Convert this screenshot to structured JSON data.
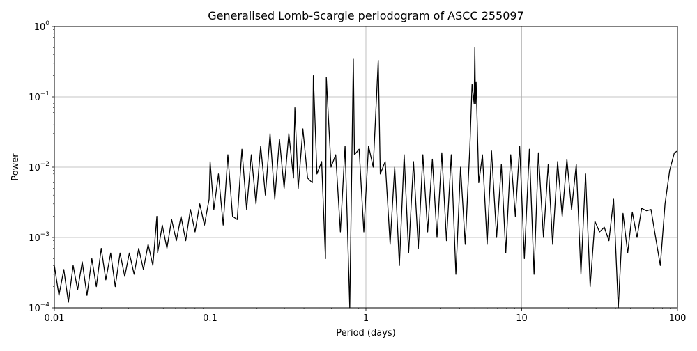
{
  "chart_data": {
    "type": "line",
    "title": "Generalised Lomb-Scargle periodogram of ASCC 255097",
    "xlabel": "Period (days)",
    "ylabel": "Power",
    "xscale": "log",
    "yscale": "log",
    "xlim": [
      0.01,
      100
    ],
    "ylim": [
      0.0001,
      1
    ],
    "grid": true,
    "x_ticks": [
      {
        "value": 0.01,
        "label": "0.01"
      },
      {
        "value": 0.1,
        "label": "0.1"
      },
      {
        "value": 1,
        "label": "1"
      },
      {
        "value": 10,
        "label": "10"
      },
      {
        "value": 100,
        "label": "100"
      }
    ],
    "y_ticks": [
      {
        "value": 0.0001,
        "base": "10",
        "exp": "−4"
      },
      {
        "value": 0.001,
        "base": "10",
        "exp": "−3"
      },
      {
        "value": 0.01,
        "base": "10",
        "exp": "−2"
      },
      {
        "value": 0.1,
        "base": "10",
        "exp": "−1"
      },
      {
        "value": 1,
        "base": "10",
        "exp": "0"
      }
    ],
    "line_color": "#000000",
    "series": [
      {
        "x": [
          0.01,
          0.0107,
          0.0115,
          0.0123,
          0.0132,
          0.0141,
          0.0151,
          0.0162,
          0.0174,
          0.0186,
          0.02,
          0.0214,
          0.023,
          0.0246,
          0.0264,
          0.0283,
          0.0303,
          0.0325,
          0.0348,
          0.0373,
          0.04,
          0.0429,
          0.0455,
          0.046,
          0.0493,
          0.0528,
          0.0566,
          0.0607,
          0.065,
          0.0697,
          0.0747,
          0.08,
          0.0858,
          0.0919,
          0.0985,
          0.1,
          0.1056,
          0.1131,
          0.1213,
          0.13,
          0.1393,
          0.1493,
          0.16,
          0.1715,
          0.1838,
          0.197,
          0.2111,
          0.2263,
          0.2425,
          0.26,
          0.2786,
          0.2986,
          0.32,
          0.343,
          0.35,
          0.3676,
          0.394,
          0.4222,
          0.4525,
          0.46,
          0.485,
          0.5198,
          0.55,
          0.557,
          0.597,
          0.6398,
          0.6857,
          0.7349,
          0.7876,
          0.83,
          0.8441,
          0.9047,
          0.9696,
          1.0392,
          1.1137,
          1.2,
          1.2365,
          1.33,
          1.43,
          1.53,
          1.64,
          1.76,
          1.88,
          2.02,
          2.17,
          2.32,
          2.49,
          2.67,
          2.86,
          3.07,
          3.29,
          3.53,
          3.78,
          4.05,
          4.34,
          4.65,
          4.8,
          4.95,
          5.0,
          5.05,
          5.1,
          5.3,
          5.6,
          6.0,
          6.4,
          6.9,
          7.4,
          7.9,
          8.5,
          9.1,
          9.7,
          10.4,
          11.2,
          12.0,
          12.8,
          13.8,
          14.8,
          15.8,
          17.0,
          18.2,
          19.5,
          20.9,
          22.4,
          24.0,
          25.7,
          27.5,
          29.5,
          31.6,
          33.9,
          36.3,
          38.9,
          41.7,
          44.7,
          47.9,
          51.3,
          55.0,
          58.9,
          63.1,
          67.6,
          72.4,
          77.6,
          83.2,
          89.1,
          95.5,
          100.0
        ],
        "y": [
          0.0004,
          0.00015,
          0.00035,
          0.00012,
          0.0004,
          0.00018,
          0.00045,
          0.00015,
          0.0005,
          0.0002,
          0.0007,
          0.00025,
          0.0006,
          0.0002,
          0.0006,
          0.00028,
          0.0006,
          0.0003,
          0.0007,
          0.00035,
          0.0008,
          0.0004,
          0.002,
          0.0006,
          0.0015,
          0.0007,
          0.0018,
          0.0009,
          0.002,
          0.0009,
          0.0025,
          0.0012,
          0.003,
          0.0015,
          0.0035,
          0.012,
          0.0025,
          0.008,
          0.0015,
          0.015,
          0.002,
          0.0018,
          0.018,
          0.0025,
          0.015,
          0.003,
          0.02,
          0.004,
          0.03,
          0.0035,
          0.025,
          0.005,
          0.03,
          0.007,
          0.07,
          0.005,
          0.035,
          0.007,
          0.006,
          0.2,
          0.008,
          0.012,
          0.0005,
          0.19,
          0.01,
          0.015,
          0.0012,
          0.02,
          0.0001,
          0.35,
          0.015,
          0.018,
          0.0012,
          0.02,
          0.01,
          0.33,
          0.008,
          0.012,
          0.0008,
          0.01,
          0.0004,
          0.015,
          0.0006,
          0.012,
          0.0007,
          0.015,
          0.0012,
          0.013,
          0.001,
          0.016,
          0.0009,
          0.015,
          0.0003,
          0.01,
          0.0008,
          0.02,
          0.15,
          0.08,
          0.5,
          0.08,
          0.16,
          0.006,
          0.015,
          0.0008,
          0.017,
          0.001,
          0.011,
          0.0006,
          0.015,
          0.002,
          0.02,
          0.0005,
          0.018,
          0.0003,
          0.016,
          0.001,
          0.011,
          0.0008,
          0.012,
          0.002,
          0.013,
          0.0025,
          0.011,
          0.0003,
          0.008,
          0.0002,
          0.0017,
          0.0012,
          0.0014,
          0.0009,
          0.0035,
          8e-05,
          0.0022,
          0.0006,
          0.0023,
          0.001,
          0.0026,
          0.0024,
          0.0025,
          0.001,
          0.0004,
          0.003,
          0.009,
          0.016,
          0.017
        ]
      }
    ]
  }
}
